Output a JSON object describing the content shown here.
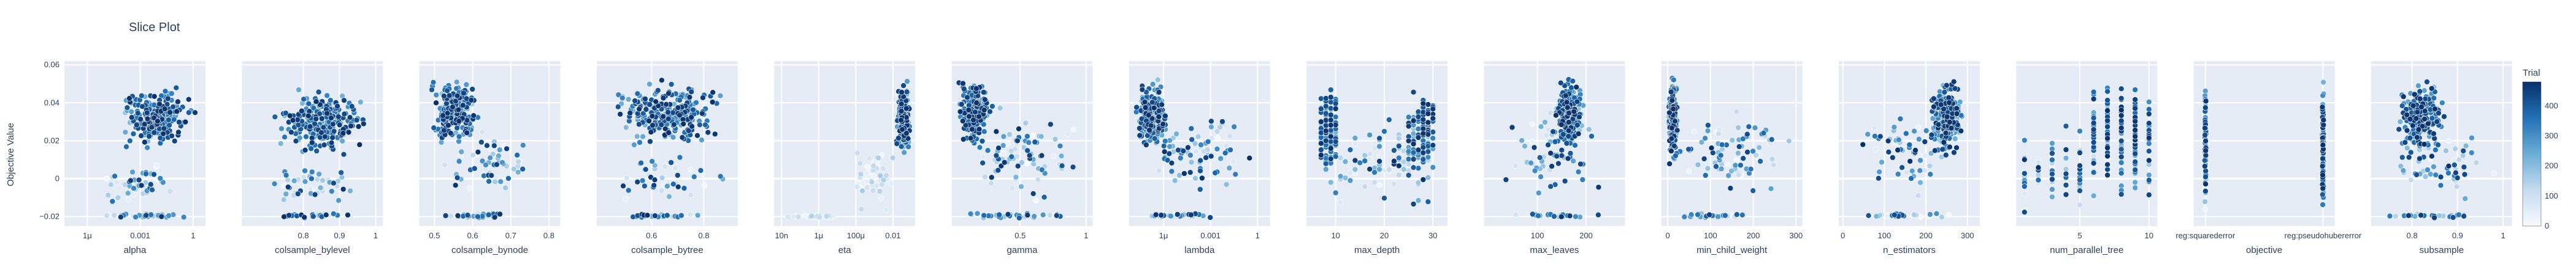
{
  "chart_data": {
    "type": "scatter",
    "title": "Slice Plot",
    "ylabel": "Objective Value",
    "ylim": [
      -0.025,
      0.062
    ],
    "y_ticks": [
      {
        "value": -0.02,
        "label": "−0.02"
      },
      {
        "value": 0,
        "label": "0"
      },
      {
        "value": 0.02,
        "label": "0.02"
      },
      {
        "value": 0.04,
        "label": "0.04"
      },
      {
        "value": 0.06,
        "label": "0.06"
      }
    ],
    "colorbar": {
      "title": "Trial",
      "range": [
        0,
        480
      ],
      "ticks": [
        0,
        100,
        200,
        300,
        400
      ],
      "colors": [
        "#f7fbff",
        "#c6dbef",
        "#6baed6",
        "#2171b5",
        "#08306b"
      ]
    },
    "grid": true,
    "panels": [
      {
        "name": "alpha",
        "scale": "log",
        "xlim": [
          -7.3,
          0.7
        ],
        "ticks": [
          {
            "value": -6,
            "label": "1μ"
          },
          {
            "value": -3,
            "label": "0.001"
          },
          {
            "value": 0,
            "label": "1"
          }
        ],
        "clusters": [
          {
            "x": [
              -4.5,
              0.3
            ],
            "y": [
              0.015,
              0.05
            ],
            "count": 240,
            "mode": "late"
          },
          {
            "x": [
              -6.5,
              0.3
            ],
            "y": [
              -0.015,
              0.01
            ],
            "count": 50,
            "mode": "mixed"
          },
          {
            "x": [
              -6.2,
              0.2
            ],
            "y": [
              -0.021,
              -0.018
            ],
            "count": 35,
            "mode": "mixed"
          }
        ]
      },
      {
        "name": "colsample_bylevel",
        "scale": "linear",
        "xlim": [
          0.63,
          1.02
        ],
        "ticks": [
          {
            "value": 0.8,
            "label": "0.8"
          },
          {
            "value": 0.9,
            "label": "0.9"
          },
          {
            "value": 1,
            "label": "1"
          }
        ],
        "clusters": [
          {
            "x": [
              0.7,
              1.0
            ],
            "y": [
              0.01,
              0.05
            ],
            "count": 240,
            "mode": "late"
          },
          {
            "x": [
              0.66,
              1.0
            ],
            "y": [
              -0.015,
              0.01
            ],
            "count": 45,
            "mode": "mixed"
          },
          {
            "x": [
              0.67,
              0.98
            ],
            "y": [
              -0.021,
              -0.018
            ],
            "count": 35,
            "mode": "mixed"
          }
        ]
      },
      {
        "name": "colsample_bynode",
        "scale": "linear",
        "xlim": [
          0.46,
          0.83
        ],
        "ticks": [
          {
            "value": 0.5,
            "label": "0.5"
          },
          {
            "value": 0.6,
            "label": "0.6"
          },
          {
            "value": 0.7,
            "label": "0.7"
          },
          {
            "value": 0.8,
            "label": "0.8"
          }
        ],
        "clusters": [
          {
            "x": [
              0.48,
              0.62
            ],
            "y": [
              0.015,
              0.055
            ],
            "count": 220,
            "mode": "late"
          },
          {
            "x": [
              0.48,
              0.8
            ],
            "y": [
              -0.015,
              0.03
            ],
            "count": 60,
            "mode": "mixed"
          },
          {
            "x": [
              0.48,
              0.72
            ],
            "y": [
              -0.021,
              -0.018
            ],
            "count": 35,
            "mode": "mixed"
          }
        ]
      },
      {
        "name": "colsample_bytree",
        "scale": "linear",
        "xlim": [
          0.39,
          0.93
        ],
        "ticks": [
          {
            "value": 0.6,
            "label": "0.6"
          },
          {
            "value": 0.8,
            "label": "0.8"
          }
        ],
        "clusters": [
          {
            "x": [
              0.42,
              0.9
            ],
            "y": [
              0.015,
              0.055
            ],
            "count": 240,
            "mode": "late"
          },
          {
            "x": [
              0.42,
              0.9
            ],
            "y": [
              -0.015,
              0.015
            ],
            "count": 45,
            "mode": "mixed"
          },
          {
            "x": [
              0.42,
              0.85
            ],
            "y": [
              -0.021,
              -0.018
            ],
            "count": 35,
            "mode": "mixed"
          }
        ]
      },
      {
        "name": "eta",
        "scale": "log",
        "xlim": [
          -8.4,
          -0.8
        ],
        "ticks": [
          {
            "value": -8,
            "label": "10n"
          },
          {
            "value": -6,
            "label": "1μ"
          },
          {
            "value": -4,
            "label": "100μ"
          },
          {
            "value": -2,
            "label": "0.01"
          }
        ],
        "clusters": [
          {
            "x": [
              -1.9,
              -1.0
            ],
            "y": [
              0.01,
              0.055
            ],
            "count": 230,
            "mode": "late"
          },
          {
            "x": [
              -4.5,
              -1.5
            ],
            "y": [
              -0.02,
              0.02
            ],
            "count": 50,
            "mode": "early"
          },
          {
            "x": [
              -8.2,
              -4.0
            ],
            "y": [
              -0.021,
              -0.019
            ],
            "count": 25,
            "mode": "early"
          }
        ]
      },
      {
        "name": "gamma",
        "scale": "linear",
        "xlim": [
          -0.02,
          1.05
        ],
        "ticks": [
          {
            "value": 0.5,
            "label": "0.5"
          },
          {
            "value": 1,
            "label": "1"
          }
        ],
        "clusters": [
          {
            "x": [
              0.0,
              0.3
            ],
            "y": [
              0.015,
              0.055
            ],
            "count": 200,
            "mode": "late"
          },
          {
            "x": [
              0.0,
              1.0
            ],
            "y": [
              -0.015,
              0.04
            ],
            "count": 90,
            "mode": "mixed"
          },
          {
            "x": [
              0.0,
              0.95
            ],
            "y": [
              -0.021,
              -0.018
            ],
            "count": 35,
            "mode": "mixed"
          }
        ]
      },
      {
        "name": "lambda",
        "scale": "log",
        "xlim": [
          -8.2,
          0.8
        ],
        "ticks": [
          {
            "value": -6,
            "label": "1μ"
          },
          {
            "value": -3,
            "label": "0.001"
          },
          {
            "value": 0,
            "label": "1"
          }
        ],
        "clusters": [
          {
            "x": [
              -8.0,
              -5.5
            ],
            "y": [
              0.01,
              0.055
            ],
            "count": 200,
            "mode": "late"
          },
          {
            "x": [
              -8.0,
              0.5
            ],
            "y": [
              -0.015,
              0.04
            ],
            "count": 80,
            "mode": "mixed"
          },
          {
            "x": [
              -8.0,
              -2.0
            ],
            "y": [
              -0.021,
              -0.018
            ],
            "count": 35,
            "mode": "mixed"
          }
        ]
      },
      {
        "name": "max_depth",
        "scale": "int",
        "xlim": [
          4,
          33
        ],
        "ticks": [
          {
            "value": 10,
            "label": "10"
          },
          {
            "value": 20,
            "label": "20"
          },
          {
            "value": 30,
            "label": "30"
          }
        ],
        "clusters": [
          {
            "x": [
              7,
              10
            ],
            "y": [
              0.0,
              0.055
            ],
            "count": 120,
            "mode": "late"
          },
          {
            "x": [
              25,
              30
            ],
            "y": [
              0.0,
              0.05
            ],
            "count": 110,
            "mode": "late"
          },
          {
            "x": [
              8,
              30
            ],
            "y": [
              -0.021,
              0.04
            ],
            "count": 90,
            "mode": "mixed"
          }
        ]
      },
      {
        "name": "max_leaves",
        "scale": "linear",
        "xlim": [
          -10,
          280
        ],
        "ticks": [
          {
            "value": 100,
            "label": "100"
          },
          {
            "value": 200,
            "label": "200"
          }
        ],
        "clusters": [
          {
            "x": [
              130,
              200
            ],
            "y": [
              0.015,
              0.055
            ],
            "count": 220,
            "mode": "late"
          },
          {
            "x": [
              10,
              260
            ],
            "y": [
              -0.015,
              0.04
            ],
            "count": 70,
            "mode": "mixed"
          },
          {
            "x": [
              20,
              250
            ],
            "y": [
              -0.021,
              -0.018
            ],
            "count": 30,
            "mode": "mixed"
          }
        ]
      },
      {
        "name": "min_child_weight",
        "scale": "linear",
        "xlim": [
          -15,
          315
        ],
        "ticks": [
          {
            "value": 0,
            "label": "0"
          },
          {
            "value": 100,
            "label": "100"
          },
          {
            "value": 200,
            "label": "200"
          },
          {
            "value": 300,
            "label": "300"
          }
        ],
        "clusters": [
          {
            "x": [
              0,
              25
            ],
            "y": [
              0.005,
              0.055
            ],
            "count": 200,
            "mode": "late"
          },
          {
            "x": [
              0,
              300
            ],
            "y": [
              -0.015,
              0.04
            ],
            "count": 90,
            "mode": "mixed"
          },
          {
            "x": [
              0,
              200
            ],
            "y": [
              -0.021,
              -0.018
            ],
            "count": 30,
            "mode": "mixed"
          }
        ]
      },
      {
        "name": "n_estimators",
        "scale": "linear",
        "xlim": [
          -10,
          330
        ],
        "ticks": [
          {
            "value": 0,
            "label": "0"
          },
          {
            "value": 100,
            "label": "100"
          },
          {
            "value": 200,
            "label": "200"
          },
          {
            "value": 300,
            "label": "300"
          }
        ],
        "clusters": [
          {
            "x": [
              200,
              300
            ],
            "y": [
              0.01,
              0.055
            ],
            "count": 230,
            "mode": "late"
          },
          {
            "x": [
              5,
              300
            ],
            "y": [
              -0.015,
              0.04
            ],
            "count": 60,
            "mode": "mixed"
          },
          {
            "x": [
              0,
              290
            ],
            "y": [
              -0.021,
              -0.018
            ],
            "count": 30,
            "mode": "mixed"
          }
        ]
      },
      {
        "name": "num_parallel_tree",
        "scale": "int",
        "xlim": [
          0.4,
          10.6
        ],
        "ticks": [
          {
            "value": 5,
            "label": "5"
          },
          {
            "value": 10,
            "label": "10"
          }
        ],
        "clusters": [
          {
            "x": [
              6,
              10
            ],
            "y": [
              0.0,
              0.055
            ],
            "count": 180,
            "mode": "late"
          },
          {
            "x": [
              1,
              10
            ],
            "y": [
              -0.021,
              0.03
            ],
            "count": 120,
            "mode": "mixed"
          }
        ]
      },
      {
        "name": "objective",
        "scale": "category",
        "xlim": [
          -0.1,
          1.1
        ],
        "ticks": [
          {
            "value": 0,
            "label": "reg:squarederror"
          },
          {
            "value": 1,
            "label": "reg:pseudohubererror"
          }
        ],
        "clusters": [
          {
            "x": [
              0,
              0
            ],
            "y": [
              -0.021,
              0.055
            ],
            "count": 150,
            "mode": "mixed"
          },
          {
            "x": [
              1,
              1
            ],
            "y": [
              -0.021,
              0.055
            ],
            "count": 170,
            "mode": "late"
          }
        ]
      },
      {
        "name": "subsample",
        "scale": "linear",
        "xlim": [
          0.71,
          1.02
        ],
        "ticks": [
          {
            "value": 0.8,
            "label": "0.8"
          },
          {
            "value": 0.9,
            "label": "0.9"
          },
          {
            "value": 1,
            "label": "1"
          }
        ],
        "clusters": [
          {
            "x": [
              0.76,
              0.88
            ],
            "y": [
              0.01,
              0.055
            ],
            "count": 230,
            "mode": "late"
          },
          {
            "x": [
              0.73,
              1.0
            ],
            "y": [
              -0.015,
              0.03
            ],
            "count": 60,
            "mode": "mixed"
          },
          {
            "x": [
              0.74,
              0.95
            ],
            "y": [
              -0.021,
              -0.018
            ],
            "count": 30,
            "mode": "mixed"
          }
        ]
      }
    ]
  }
}
